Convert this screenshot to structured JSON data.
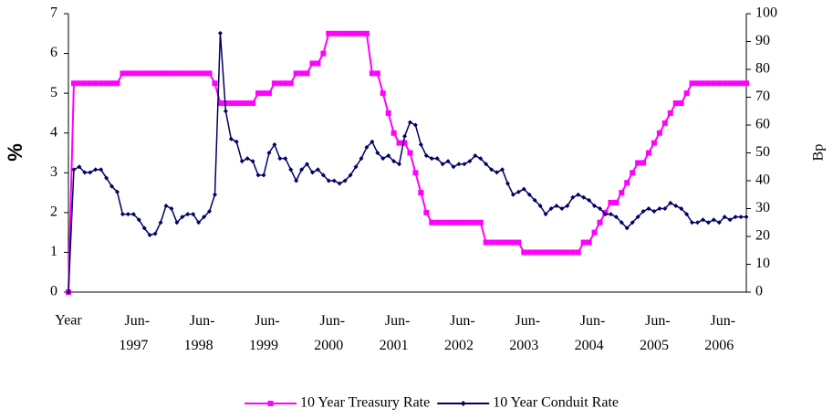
{
  "chart_data": {
    "type": "line",
    "y_label": "%",
    "y2_label": "Bp",
    "categories": [
      "Year",
      null,
      null,
      null,
      null,
      null,
      null,
      null,
      null,
      null,
      null,
      null,
      "Jun-1997",
      null,
      null,
      null,
      null,
      null,
      null,
      null,
      null,
      null,
      null,
      null,
      "Jun-1998",
      null,
      null,
      null,
      null,
      null,
      null,
      null,
      null,
      null,
      null,
      null,
      "Jun-1999",
      null,
      null,
      null,
      null,
      null,
      null,
      null,
      null,
      null,
      null,
      null,
      "Jun-2000",
      null,
      null,
      null,
      null,
      null,
      null,
      null,
      null,
      null,
      null,
      null,
      "Jun-2001",
      null,
      null,
      null,
      null,
      null,
      null,
      null,
      null,
      null,
      null,
      null,
      "Jun-2002",
      null,
      null,
      null,
      null,
      null,
      null,
      null,
      null,
      null,
      null,
      null,
      "Jun-2003",
      null,
      null,
      null,
      null,
      null,
      null,
      null,
      null,
      null,
      null,
      null,
      "Jun-2004",
      null,
      null,
      null,
      null,
      null,
      null,
      null,
      null,
      null,
      null,
      null,
      "Jun-2005",
      null,
      null,
      null,
      null,
      null,
      null,
      null,
      null,
      null,
      null,
      null,
      "Jun-2006",
      null,
      null,
      null,
      null,
      null
    ],
    "series": [
      {
        "name": "10 Year Treasury Rate",
        "color": "#ff00ff",
        "marker": "square",
        "axis": "y",
        "values": [
          0,
          5.25,
          5.25,
          5.25,
          5.25,
          5.25,
          5.25,
          5.25,
          5.25,
          5.25,
          5.5,
          5.5,
          5.5,
          5.5,
          5.5,
          5.5,
          5.5,
          5.5,
          5.5,
          5.5,
          5.5,
          5.5,
          5.5,
          5.5,
          5.5,
          5.5,
          5.5,
          5.25,
          4.75,
          4.75,
          4.75,
          4.75,
          4.75,
          4.75,
          4.75,
          5.0,
          5.0,
          5.0,
          5.25,
          5.25,
          5.25,
          5.25,
          5.5,
          5.5,
          5.5,
          5.75,
          5.75,
          6.0,
          6.5,
          6.5,
          6.5,
          6.5,
          6.5,
          6.5,
          6.5,
          6.5,
          5.5,
          5.5,
          5.0,
          4.5,
          4.0,
          3.75,
          3.75,
          3.5,
          3.0,
          2.5,
          2.0,
          1.75,
          1.75,
          1.75,
          1.75,
          1.75,
          1.75,
          1.75,
          1.75,
          1.75,
          1.75,
          1.25,
          1.25,
          1.25,
          1.25,
          1.25,
          1.25,
          1.25,
          1.0,
          1.0,
          1.0,
          1.0,
          1.0,
          1.0,
          1.0,
          1.0,
          1.0,
          1.0,
          1.0,
          1.25,
          1.25,
          1.5,
          1.75,
          2.0,
          2.25,
          2.25,
          2.5,
          2.75,
          3.0,
          3.25,
          3.25,
          3.5,
          3.75,
          4.0,
          4.25,
          4.5,
          4.75,
          4.75,
          5.0,
          5.25,
          5.25,
          5.25,
          5.25,
          5.25,
          5.25,
          5.25,
          5.25,
          5.25,
          5.25,
          5.25
        ]
      },
      {
        "name": "10 Year Conduit Rate",
        "color": "#000066",
        "marker": "diamond",
        "axis": "y2",
        "values": [
          0,
          44,
          45,
          43,
          43,
          44,
          44,
          41,
          38,
          36,
          28,
          28,
          28,
          26,
          23,
          20.5,
          21,
          25,
          31,
          30,
          25,
          27,
          28,
          28,
          25,
          27,
          29,
          35,
          93,
          65,
          55,
          54,
          47,
          48,
          47,
          42,
          42,
          50,
          53,
          48,
          48,
          44,
          40,
          44,
          46,
          43,
          44,
          42,
          40,
          40,
          39,
          40,
          42,
          45,
          48,
          52,
          54,
          50,
          48,
          49,
          47,
          46,
          56,
          61,
          60,
          53,
          49,
          48,
          48,
          46,
          47,
          45,
          46,
          46,
          47,
          49,
          48,
          46,
          44,
          43,
          44,
          39,
          35,
          36,
          37,
          35,
          33,
          31,
          28,
          30,
          31,
          30,
          31,
          34,
          35,
          34,
          33,
          31,
          30,
          28,
          28,
          27,
          25,
          23,
          25,
          27,
          29,
          30,
          29,
          30,
          30,
          32,
          31,
          30,
          28,
          25,
          25,
          26,
          25,
          26,
          25,
          27,
          26,
          27,
          27,
          27
        ]
      }
    ],
    "ylim": [
      0,
      7
    ],
    "yticks": [
      0,
      1,
      2,
      3,
      4,
      5,
      6,
      7
    ],
    "y2lim": [
      0,
      100
    ],
    "y2ticks": [
      0,
      10,
      20,
      30,
      40,
      50,
      60,
      70,
      80,
      90,
      100
    ],
    "grid": false,
    "legend": "bottom"
  }
}
